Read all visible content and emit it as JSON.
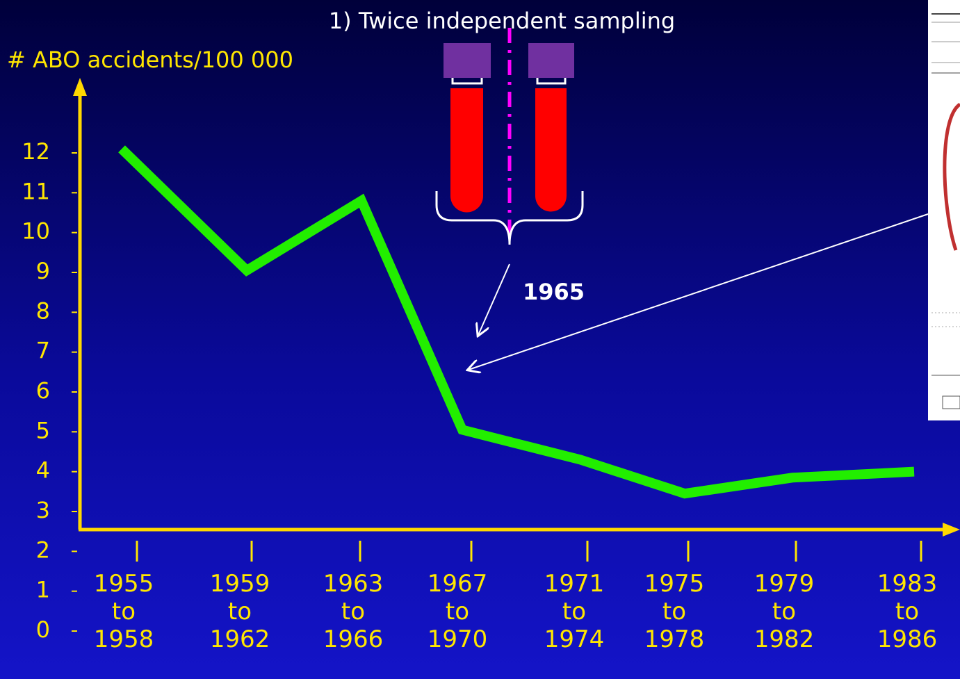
{
  "chart_data": {
    "type": "line",
    "title": "1) Twice independent sampling",
    "y_label": "# ABO accidents/100 000",
    "annotation": "1965",
    "categories": [
      "1955 to 1958",
      "1959 to 1962",
      "1963 to 1966",
      "1967 to 1970",
      "1971 to 1974",
      "1975 to 1978",
      "1979 to 1982",
      "1983 to 1986"
    ],
    "values": [
      12.1,
      9.05,
      10.8,
      5.05,
      4.3,
      3.45,
      3.85,
      4.0
    ],
    "color": "#22ee00",
    "ylim": [
      0,
      12
    ],
    "yticks": [
      0,
      1,
      2,
      3,
      4,
      5,
      6,
      7,
      8,
      9,
      10,
      11,
      12
    ]
  }
}
